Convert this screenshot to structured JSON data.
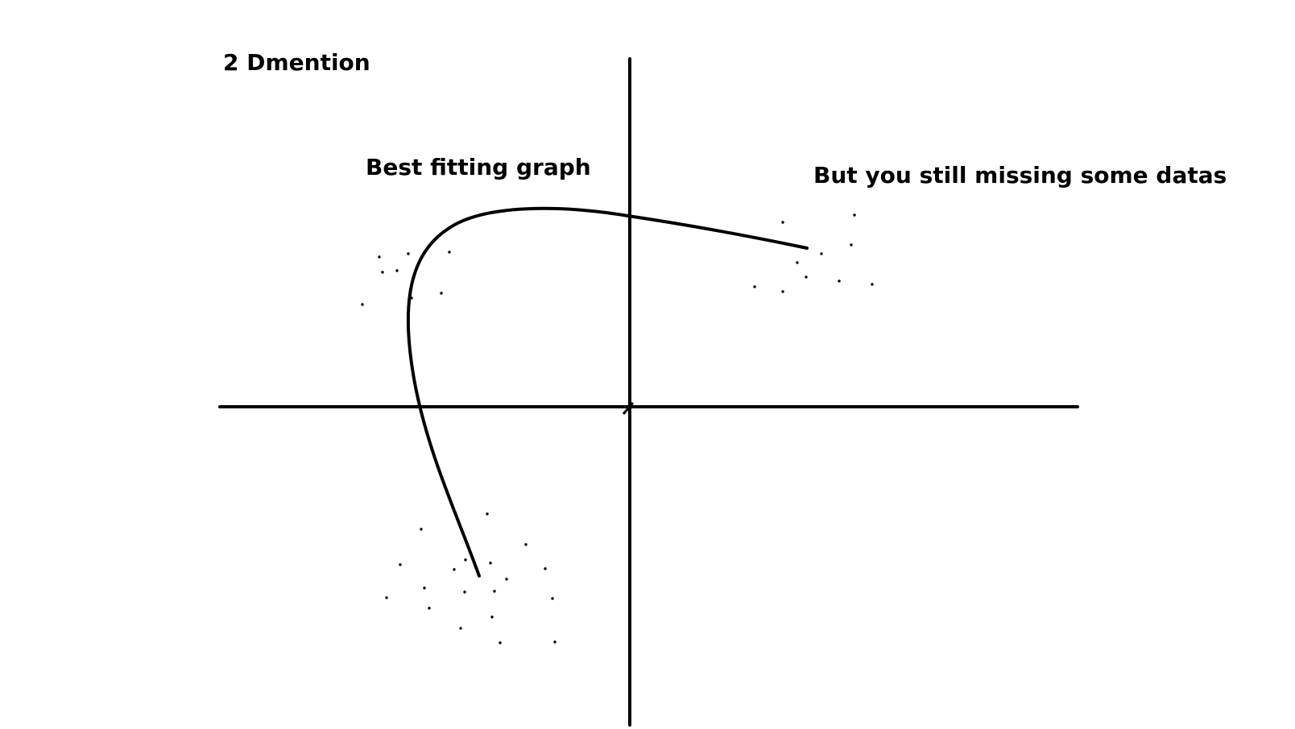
{
  "labels": {
    "title": "2 Dmention",
    "curve_caption": "Best fitting graph",
    "missing_caption": "But you still missing some datas"
  },
  "colors": {
    "ink": "#000000",
    "background": "#ffffff"
  }
}
